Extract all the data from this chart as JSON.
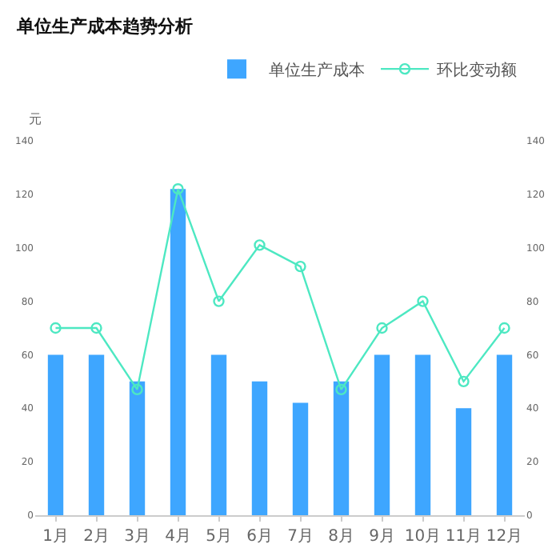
{
  "chart_data": {
    "type": "bar",
    "title": "单位生产成本趋势分析",
    "ylabel": "元",
    "categories": [
      "1月",
      "2月",
      "3月",
      "4月",
      "5月",
      "6月",
      "7月",
      "8月",
      "9月",
      "10月",
      "11月",
      "12月"
    ],
    "series": [
      {
        "name": "单位生产成本",
        "color": "#3ea6ff",
        "values": [
          60,
          60,
          50,
          122,
          60,
          50,
          42,
          50,
          60,
          60,
          40,
          60
        ]
      },
      {
        "name": "环比变动额",
        "type": "line",
        "axis": "y2",
        "color": "#4de8c2",
        "marker": "circle",
        "values": [
          70,
          70,
          47,
          122,
          80,
          101,
          93,
          47,
          70,
          80,
          50,
          70
        ]
      }
    ],
    "ylim": [
      0,
      140
    ],
    "yticks": [
      0,
      20,
      40,
      60,
      80,
      100,
      120,
      140
    ],
    "y2lim": [
      0,
      140
    ],
    "y2ticks": [
      0,
      20,
      40,
      60,
      80,
      100,
      120,
      140
    ],
    "grid": false,
    "legend": "top right"
  }
}
